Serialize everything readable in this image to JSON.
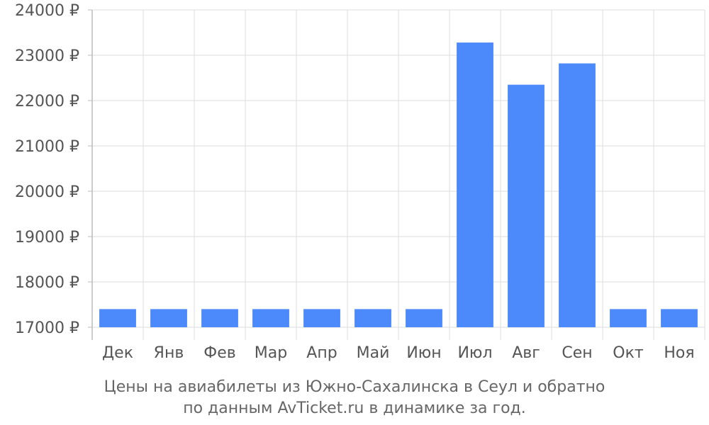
{
  "chart_data": {
    "type": "bar",
    "categories": [
      "Дек",
      "Янв",
      "Фев",
      "Мар",
      "Апр",
      "Май",
      "Июн",
      "Июл",
      "Авг",
      "Сен",
      "Окт",
      "Ноя"
    ],
    "values": [
      17400,
      17400,
      17400,
      17400,
      17400,
      17400,
      17400,
      23280,
      22350,
      22820,
      17400,
      17400
    ],
    "ylim": [
      17000,
      24000
    ],
    "yticks": [
      17000,
      18000,
      19000,
      20000,
      21000,
      22000,
      23000,
      24000
    ],
    "ytick_suffix": " ₽",
    "grid": true,
    "bar_color": "#4c89fa",
    "grid_color": "#dddddd",
    "caption": [
      "Цены на авиабилеты из Южно-Сахалинска в Сеул и обратно",
      "по данным AvTicket.ru в динамике за год."
    ]
  }
}
